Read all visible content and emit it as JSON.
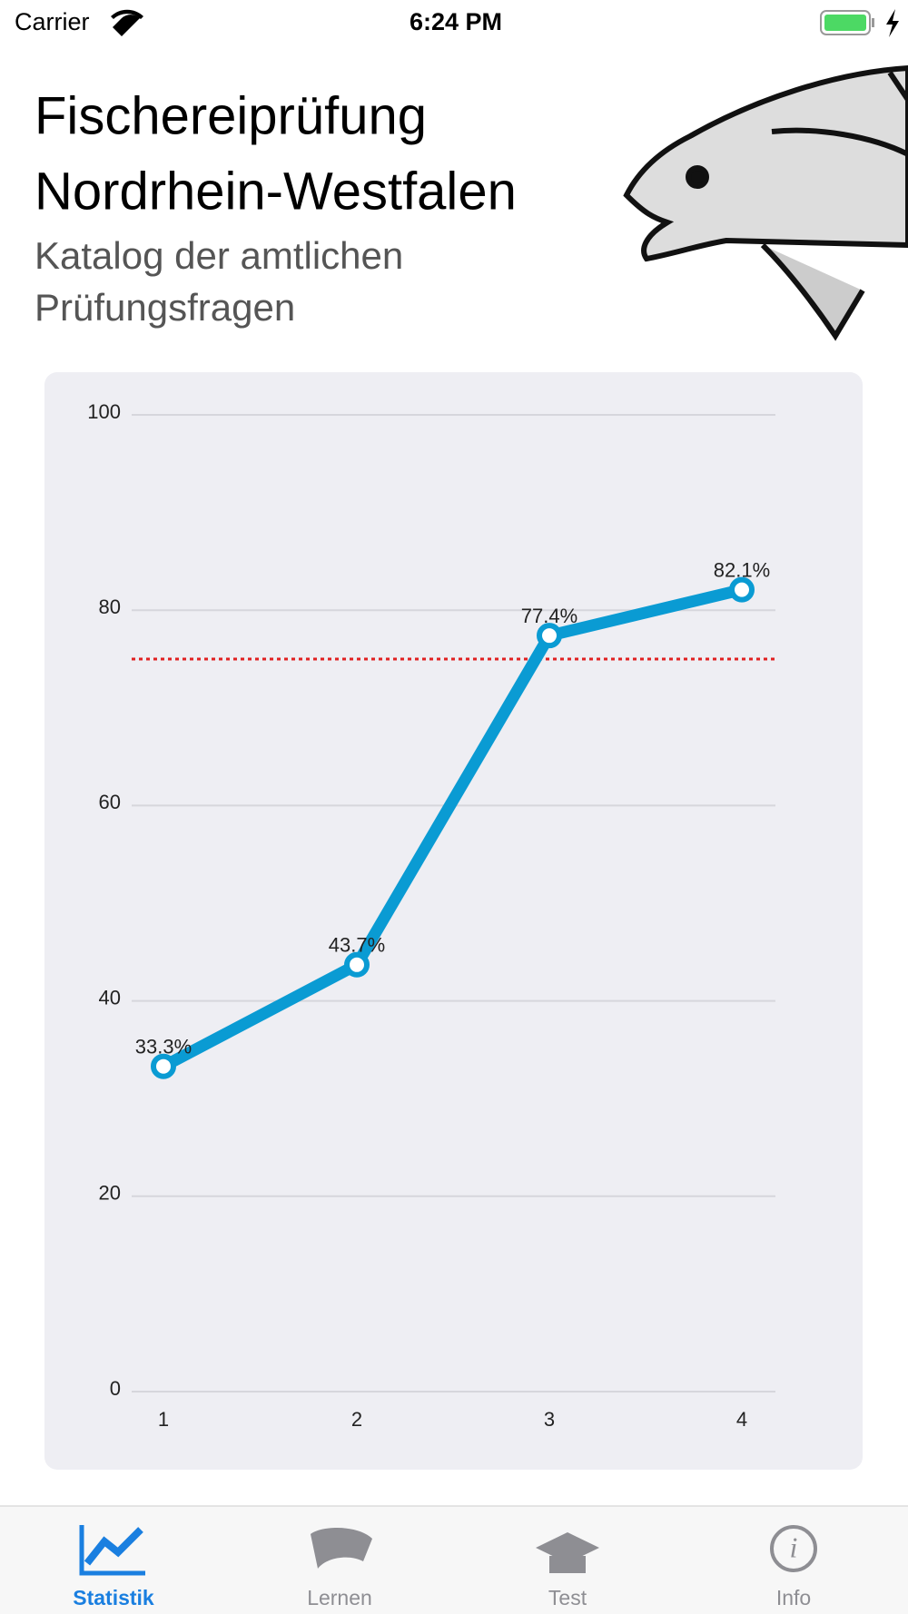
{
  "status": {
    "carrier": "Carrier",
    "time": "6:24 PM"
  },
  "header": {
    "title_lines": [
      "Fischereiprüfung",
      "Nordrhein-Westfalen"
    ],
    "subtitle_lines": [
      "Katalog der amtlichen",
      "Prüfungsfragen"
    ]
  },
  "chart_data": {
    "type": "line",
    "categories": [
      "1",
      "2",
      "3",
      "4"
    ],
    "values": [
      33.3,
      43.7,
      77.4,
      82.1
    ],
    "value_labels": [
      "33.3%",
      "43.7%",
      "77.4%",
      "82.1%"
    ],
    "color": "#0a9bd3",
    "ylim": [
      0,
      100
    ],
    "yticks": [
      0,
      20,
      40,
      60,
      80,
      100
    ],
    "grid": true,
    "reference_line": {
      "value": 75,
      "color": "#e02020"
    }
  },
  "tabs": [
    {
      "label": "Statistik",
      "active": true
    },
    {
      "label": "Lernen",
      "active": false
    },
    {
      "label": "Test",
      "active": false
    },
    {
      "label": "Info",
      "active": false
    }
  ]
}
